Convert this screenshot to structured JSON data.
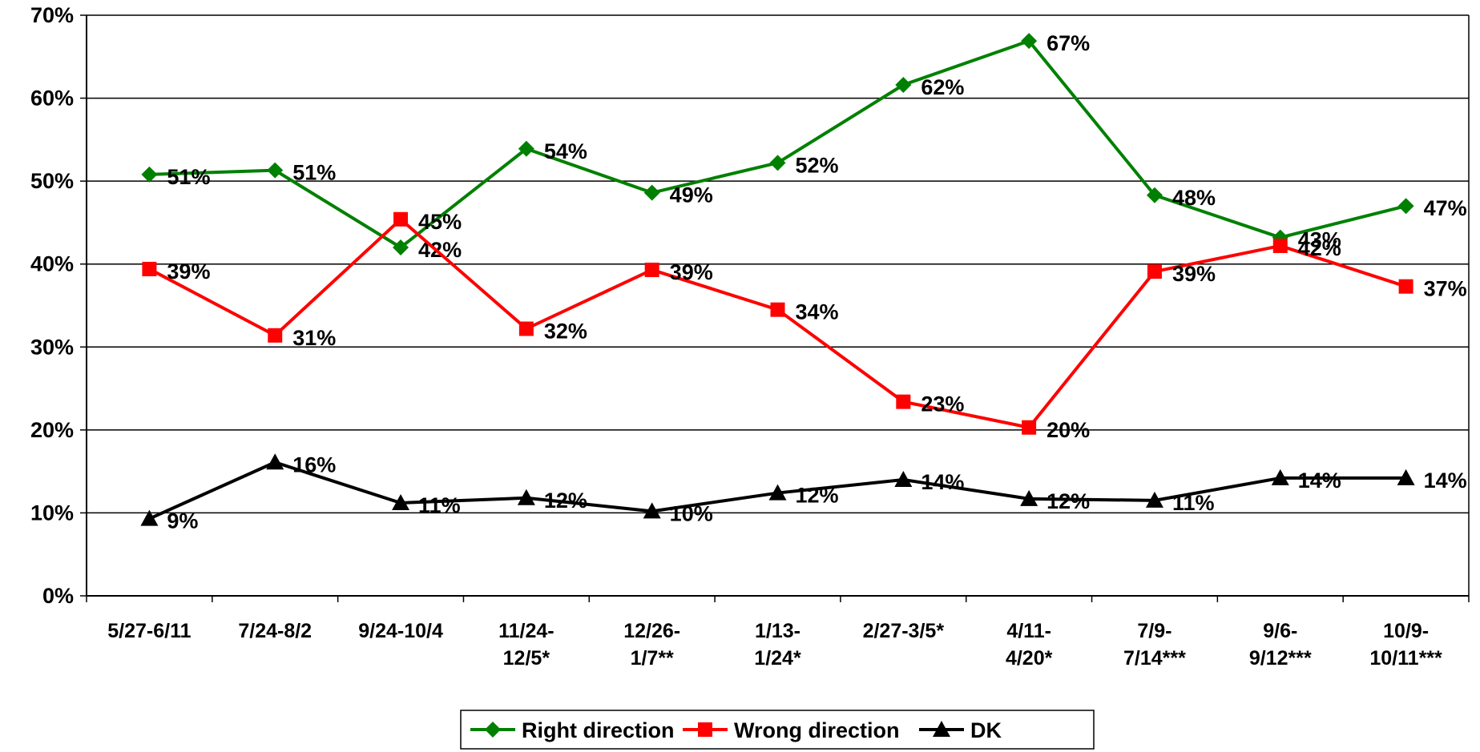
{
  "chart_data": {
    "type": "line",
    "categories": [
      "5/27-6/11",
      "7/24-8/2",
      "9/24-10/4",
      "11/24-\n12/5*",
      "12/26-\n1/7**",
      "1/13-\n1/24*",
      "2/27-3/5*",
      "4/11-\n4/20*",
      "7/9-\n7/14***",
      "9/6-\n9/12***",
      "10/9-\n10/11***"
    ],
    "series": [
      {
        "name": "Right direction",
        "color": "#008000",
        "marker": "diamond",
        "values": [
          50.8,
          51.3,
          42.0,
          53.9,
          48.6,
          52.2,
          61.6,
          66.9,
          48.3,
          43.2,
          47.0
        ],
        "value_labels": [
          "51%",
          "51%",
          "42%",
          "54%",
          "49%",
          "52%",
          "62%",
          "67%",
          "48%",
          "43%",
          "47%"
        ]
      },
      {
        "name": "Wrong direction",
        "color": "#ff0000",
        "marker": "square",
        "values": [
          39.4,
          31.4,
          45.4,
          32.2,
          39.3,
          34.5,
          23.4,
          20.3,
          39.1,
          42.2,
          37.3
        ],
        "value_labels": [
          "39%",
          "31%",
          "45%",
          "32%",
          "39%",
          "34%",
          "23%",
          "20%",
          "39%",
          "42%",
          "37%"
        ]
      },
      {
        "name": "DK",
        "color": "#000000",
        "marker": "triangle",
        "values": [
          9.3,
          16.1,
          11.2,
          11.8,
          10.2,
          12.4,
          14.0,
          11.7,
          11.5,
          14.2,
          14.2
        ],
        "value_labels": [
          "9%",
          "16%",
          "11%",
          "12%",
          "10%",
          "12%",
          "14%",
          "12%",
          "11%",
          "14%",
          "14%"
        ]
      }
    ],
    "ylim": [
      0,
      70
    ],
    "yticks": [
      {
        "value": 0,
        "label": "0%"
      },
      {
        "value": 10,
        "label": "10%"
      },
      {
        "value": 20,
        "label": "20%"
      },
      {
        "value": 30,
        "label": "30%"
      },
      {
        "value": 40,
        "label": "40%"
      },
      {
        "value": 50,
        "label": "50%"
      },
      {
        "value": 60,
        "label": "60%"
      },
      {
        "value": 70,
        "label": "70%"
      }
    ],
    "grid": true,
    "legend": "bottom"
  }
}
